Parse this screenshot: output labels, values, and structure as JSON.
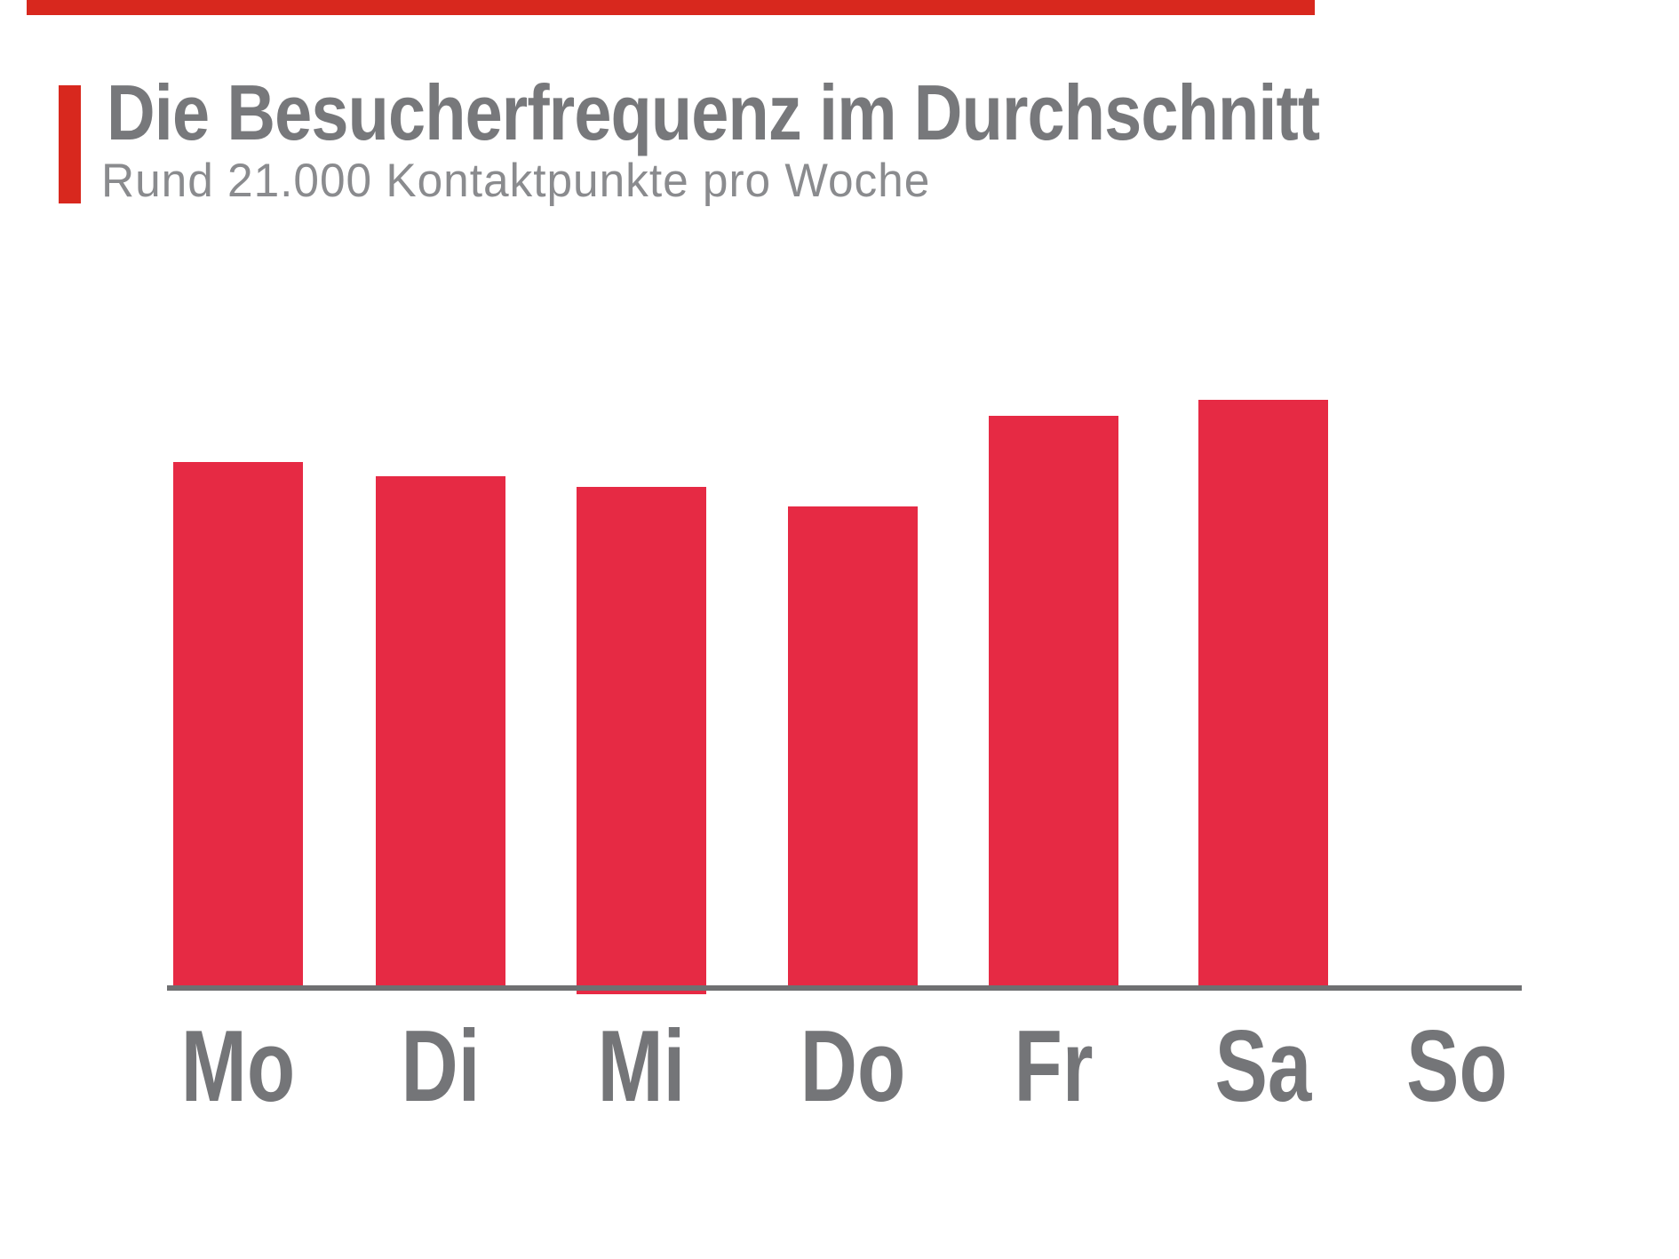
{
  "slide": {
    "background": "#FFFFFF",
    "top_rule_color": "#D8281E",
    "accent_bar_color": "#D8281E"
  },
  "header": {
    "title": "Die Besucherfrequenz im Durchschnitt",
    "subtitle": "Rund 21.000 Kontaktpunkte pro Woche",
    "title_color": "#77787B",
    "subtitle_color": "#8A8B8E"
  },
  "chart_data": {
    "type": "bar",
    "title": "Die Besucherfrequenz im Durchschnitt",
    "subtitle": "Rund 21.000 Kontaktpunkte pro Woche",
    "categories": [
      "Mo",
      "Di",
      "Mi",
      "Do",
      "Fr",
      "Sa",
      "So"
    ],
    "values": [
      89.4,
      86.9,
      85.1,
      81.8,
      97.3,
      100,
      0
    ],
    "values_unit": "percent of tallest bar (Sa); no numeric y-axis shown in figure",
    "xlabel": "",
    "ylabel": "",
    "ylim": [
      0,
      100
    ],
    "grid": false,
    "legend": false,
    "bar_color": "#E62A44",
    "axis_color": "#6F7072",
    "tick_label_color": "#747578",
    "note": "Weekday visitor frequency; Sunday (So) has no bar (value 0). Total ~21.000 contact points per week."
  }
}
